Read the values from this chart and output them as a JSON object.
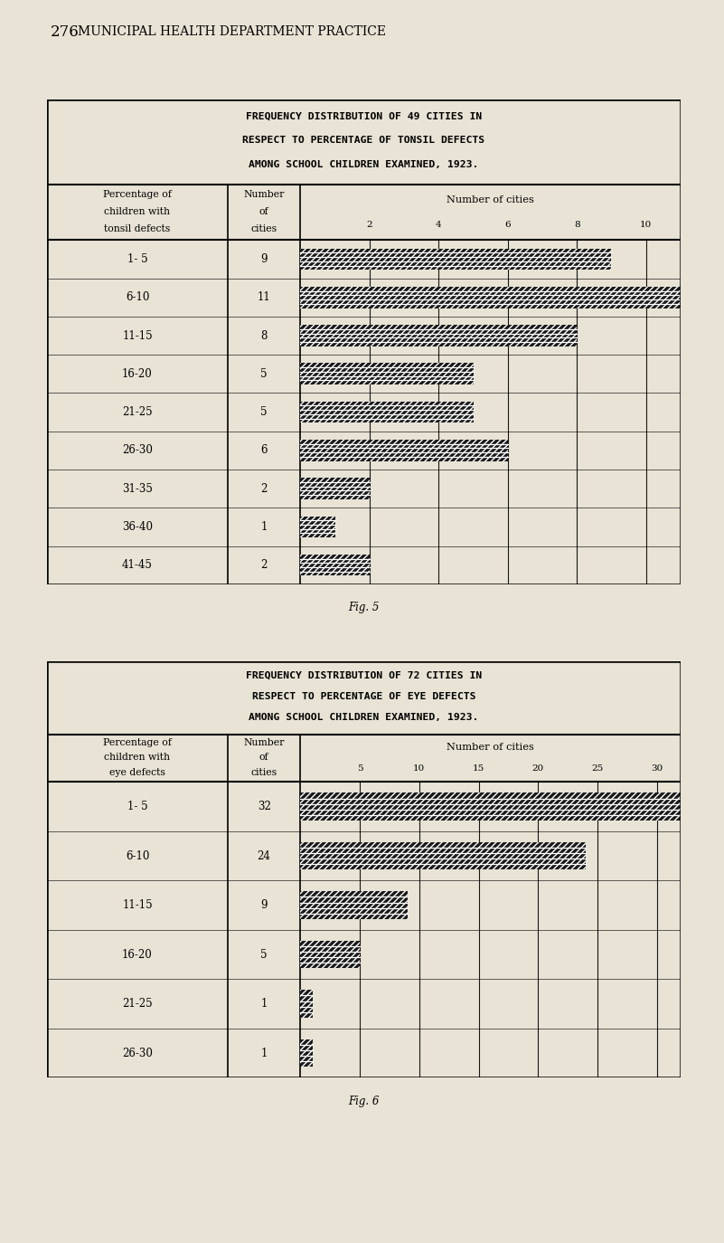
{
  "page_bg": "#e8e3d5",
  "table_bg": "#e8e3d5",
  "page_num": "276",
  "page_header": "MUNICIPAL HEALTH DEPARTMENT PRACTICE",
  "fig5_caption": "Fig. 5",
  "fig6_caption": "Fig. 6",
  "chart1": {
    "title_lines": [
      "FREQUENCY DISTRIBUTION OF 49 CITIES IN",
      "RESPECT TO PERCENTAGE OF TONSIL DEFECTS",
      "AMONG SCHOOL CHILDREN EXAMINED, 1923."
    ],
    "col1_header": [
      "Percentage of",
      "children with",
      "tonsil defects"
    ],
    "col2_header": [
      "Number",
      "of",
      "cities"
    ],
    "col3_header": "Number of cities",
    "x_ticks": [
      2,
      4,
      6,
      8,
      10
    ],
    "x_max": 11.0,
    "bar_scale": 11.0,
    "categories": [
      "1- 5",
      "6-10",
      "11-15",
      "16-20",
      "21-25",
      "26-30",
      "31-35",
      "36-40",
      "41-45"
    ],
    "values": [
      9,
      11,
      8,
      5,
      5,
      6,
      2,
      1,
      2
    ],
    "bar_color": "#1a1a1a"
  },
  "chart2": {
    "title_lines": [
      "FREQUENCY DISTRIBUTION OF 72 CITIES IN",
      "RESPECT TO PERCENTAGE OF EYE DEFECTS",
      "AMONG SCHOOL CHILDREN EXAMINED, 1923."
    ],
    "col1_header": [
      "Percentage of",
      "children with",
      "eye defects"
    ],
    "col2_header": [
      "Number",
      "of",
      "cities"
    ],
    "col3_header": "Number of cities",
    "x_ticks": [
      5,
      10,
      15,
      20,
      25,
      30
    ],
    "x_max": 32.0,
    "bar_scale": 32.0,
    "categories": [
      "1- 5",
      "6-10",
      "11-15",
      "16-20",
      "21-25",
      "26-30"
    ],
    "values": [
      32,
      24,
      9,
      5,
      1,
      1
    ],
    "bar_color": "#1a1a1a"
  }
}
